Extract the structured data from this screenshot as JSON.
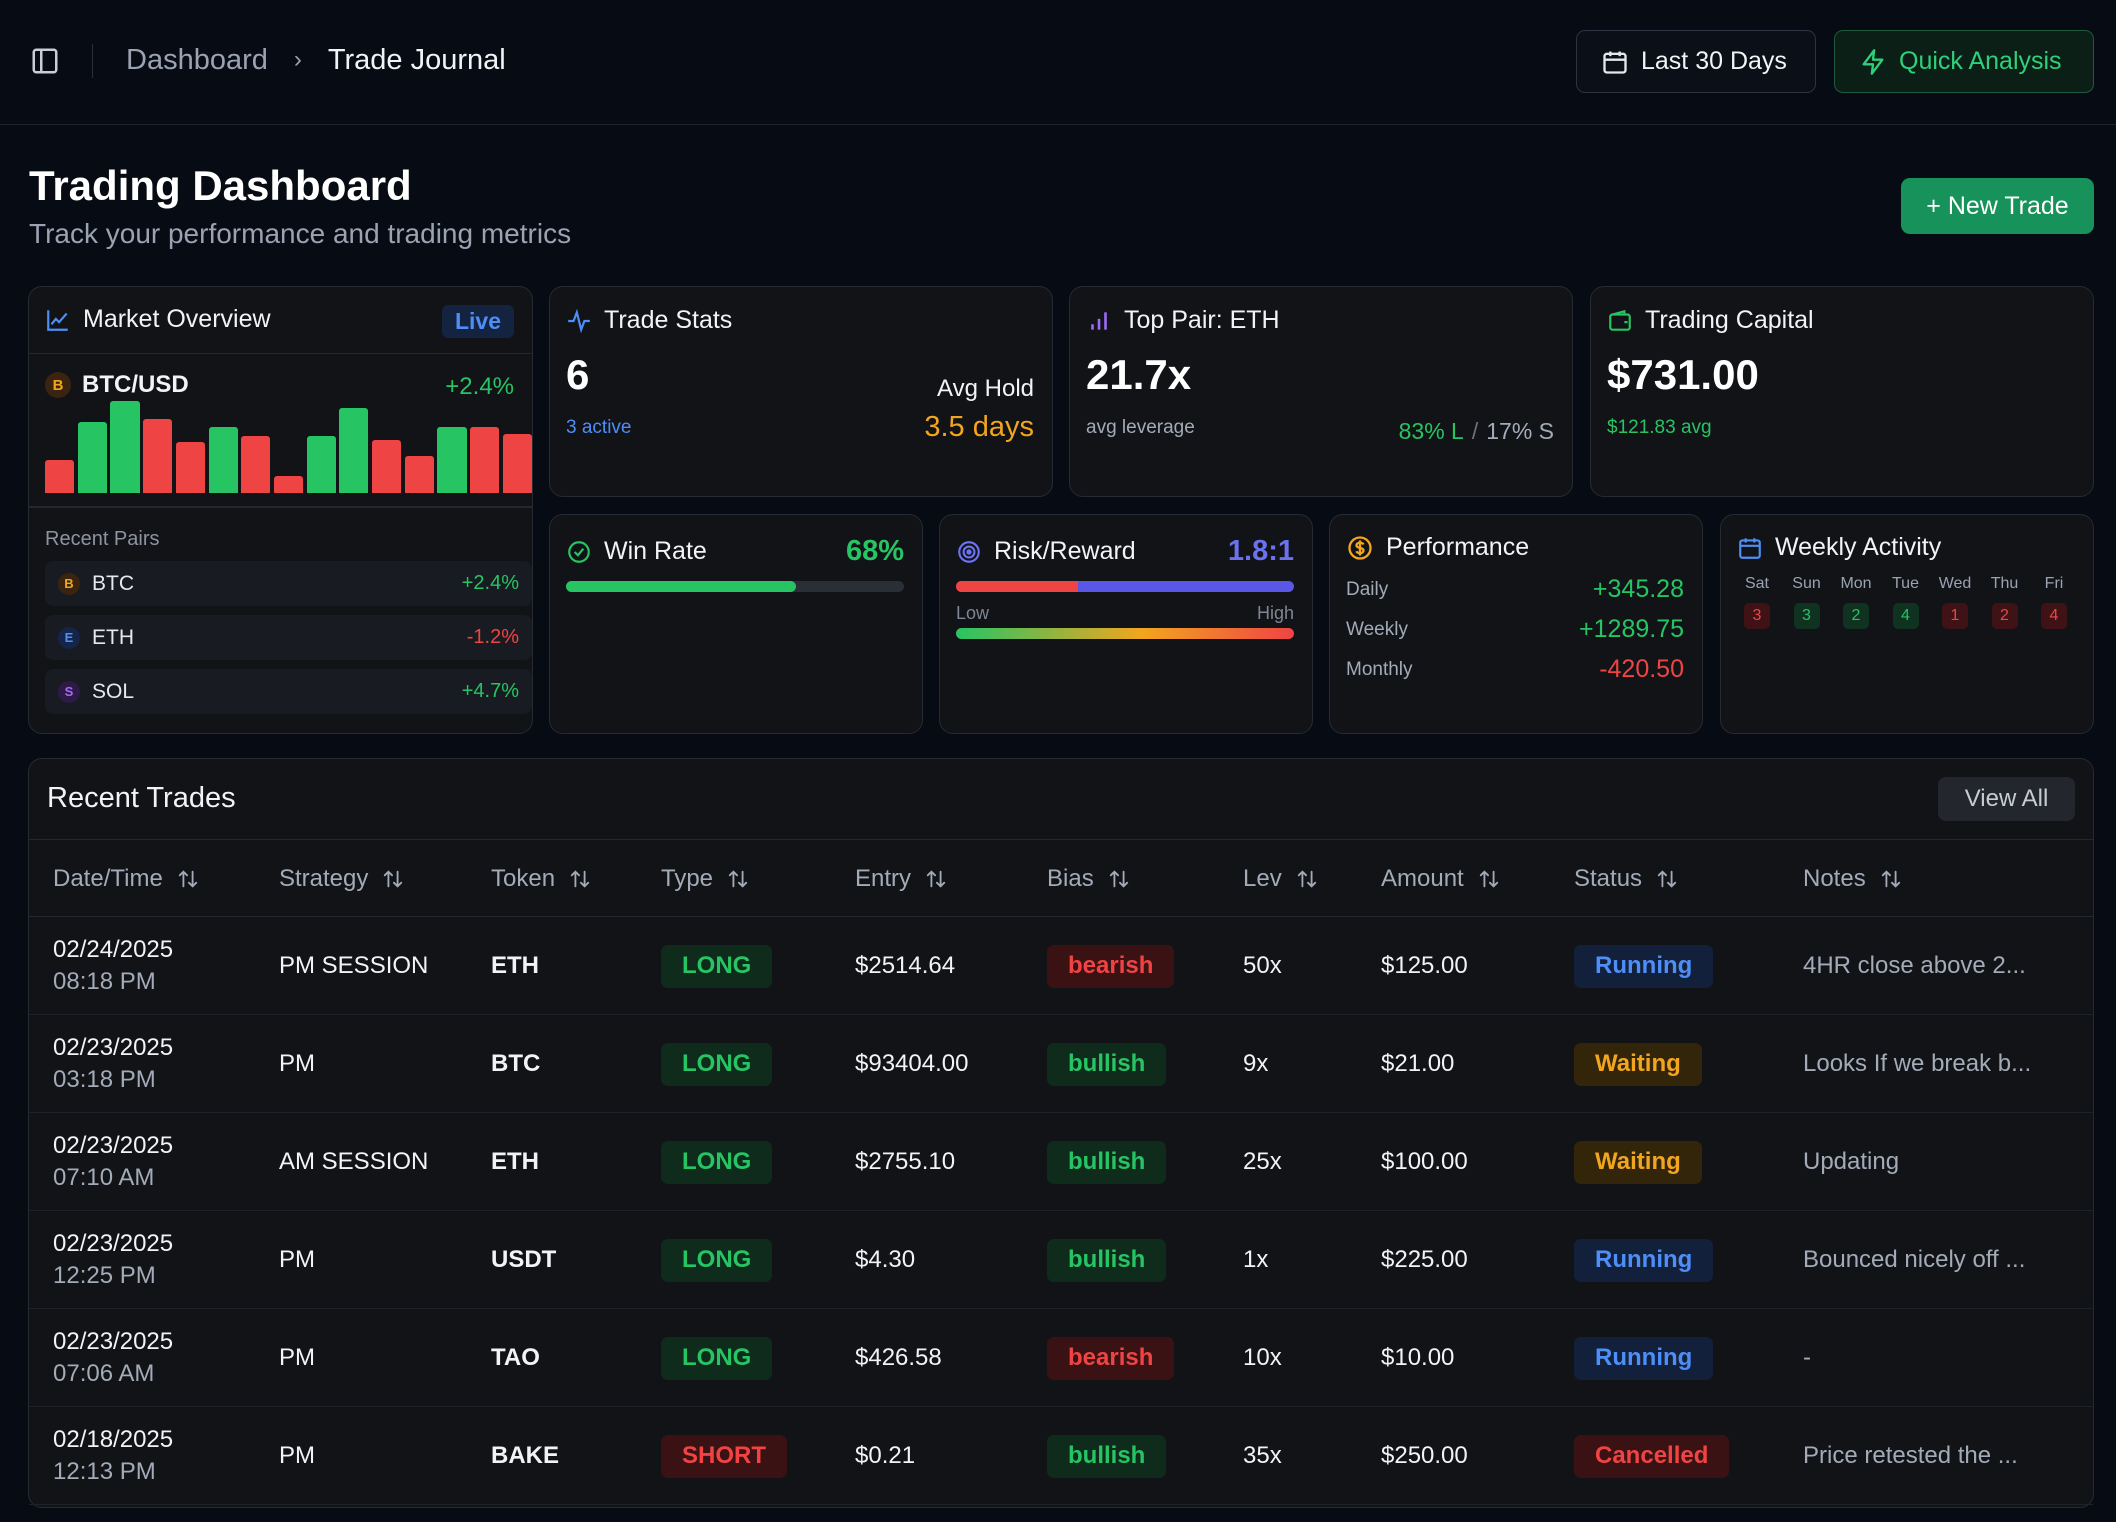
{
  "breadcrumb": {
    "parent": "Dashboard",
    "separator": "›",
    "current": "Trade Journal"
  },
  "header_actions": {
    "range_label": "Last 30 Days",
    "quick_label": "Quick Analysis"
  },
  "page": {
    "title": "Trading Dashboard",
    "subtitle": "Track your performance and trading metrics",
    "new_trade_label": "+ New Trade"
  },
  "market_overview": {
    "title": "Market Overview",
    "badge": "Live",
    "pair": {
      "symbol_letter": "B",
      "name": "BTC/USD",
      "change": "+2.4%"
    },
    "bars": [
      {
        "level": 0.36,
        "dir": "down"
      },
      {
        "level": 0.77,
        "dir": "up"
      },
      {
        "level": 1.0,
        "dir": "up"
      },
      {
        "level": 0.8,
        "dir": "down"
      },
      {
        "level": 0.55,
        "dir": "down"
      },
      {
        "level": 0.72,
        "dir": "up"
      },
      {
        "level": 0.62,
        "dir": "down"
      },
      {
        "level": 0.18,
        "dir": "down"
      },
      {
        "level": 0.62,
        "dir": "up"
      },
      {
        "level": 0.92,
        "dir": "up"
      },
      {
        "level": 0.58,
        "dir": "down"
      },
      {
        "level": 0.4,
        "dir": "down"
      },
      {
        "level": 0.72,
        "dir": "up"
      },
      {
        "level": 0.72,
        "dir": "down"
      },
      {
        "level": 0.64,
        "dir": "down"
      }
    ],
    "recent_label": "Recent Pairs",
    "recent_pairs": [
      {
        "letter": "B",
        "name": "BTC",
        "change": "+2.4%",
        "tone": "up"
      },
      {
        "letter": "E",
        "name": "ETH",
        "change": "-1.2%",
        "tone": "down"
      },
      {
        "letter": "S",
        "name": "SOL",
        "change": "+4.7%",
        "tone": "up"
      }
    ]
  },
  "trade_stats": {
    "title": "Trade Stats",
    "count": "6",
    "active": "3 active",
    "avg_hold_label": "Avg Hold",
    "avg_hold": "3.5 days"
  },
  "top_pair": {
    "title": "Top Pair: ETH",
    "value": "21.7x",
    "caption": "avg leverage",
    "long": "83% L",
    "sep": "/",
    "short": "17% S"
  },
  "trading_capital": {
    "title": "Trading Capital",
    "value": "$731.00",
    "avg": "$121.83 avg"
  },
  "win_rate": {
    "title": "Win Rate",
    "value": "68%",
    "progress": 0.68
  },
  "risk_reward": {
    "title": "Risk/Reward",
    "value": "1.8:1",
    "risk_share": 0.36,
    "low": "Low",
    "high": "High"
  },
  "performance": {
    "title": "Performance",
    "rows": [
      {
        "label": "Daily",
        "value": "+345.28",
        "tone": "up"
      },
      {
        "label": "Weekly",
        "value": "+1289.75",
        "tone": "up"
      },
      {
        "label": "Monthly",
        "value": "-420.50",
        "tone": "down"
      }
    ]
  },
  "weekly_activity": {
    "title": "Weekly Activity",
    "days": [
      {
        "day": "Sat",
        "count": "3",
        "tone": "down"
      },
      {
        "day": "Sun",
        "count": "3",
        "tone": "up"
      },
      {
        "day": "Mon",
        "count": "2",
        "tone": "up"
      },
      {
        "day": "Tue",
        "count": "4",
        "tone": "up"
      },
      {
        "day": "Wed",
        "count": "1",
        "tone": "down"
      },
      {
        "day": "Thu",
        "count": "2",
        "tone": "down"
      },
      {
        "day": "Fri",
        "count": "4",
        "tone": "down"
      }
    ]
  },
  "recent_trades": {
    "title": "Recent Trades",
    "view_all": "View All",
    "columns": [
      "Date/Time",
      "Strategy",
      "Token",
      "Type",
      "Entry",
      "Bias",
      "Lev",
      "Amount",
      "Status",
      "Notes"
    ],
    "rows": [
      {
        "date": "02/24/2025",
        "time": "08:18 PM",
        "strategy": "PM SESSION",
        "token": "ETH",
        "type": "LONG",
        "entry": "$2514.64",
        "bias": "bearish",
        "lev": "50x",
        "amount": "$125.00",
        "status": "Running",
        "notes": "4HR close above 2..."
      },
      {
        "date": "02/23/2025",
        "time": "03:18 PM",
        "strategy": "PM",
        "token": "BTC",
        "type": "LONG",
        "entry": "$93404.00",
        "bias": "bullish",
        "lev": "9x",
        "amount": "$21.00",
        "status": "Waiting",
        "notes": "Looks If we break b..."
      },
      {
        "date": "02/23/2025",
        "time": "07:10 AM",
        "strategy": "AM SESSION",
        "token": "ETH",
        "type": "LONG",
        "entry": "$2755.10",
        "bias": "bullish",
        "lev": "25x",
        "amount": "$100.00",
        "status": "Waiting",
        "notes": "Updating"
      },
      {
        "date": "02/23/2025",
        "time": "12:25 PM",
        "strategy": "PM",
        "token": "USDT",
        "type": "LONG",
        "entry": "$4.30",
        "bias": "bullish",
        "lev": "1x",
        "amount": "$225.00",
        "status": "Running",
        "notes": "Bounced nicely off ..."
      },
      {
        "date": "02/23/2025",
        "time": "07:06 AM",
        "strategy": "PM",
        "token": "TAO",
        "type": "LONG",
        "entry": "$426.58",
        "bias": "bearish",
        "lev": "10x",
        "amount": "$10.00",
        "status": "Running",
        "notes": "-"
      },
      {
        "date": "02/18/2025",
        "time": "12:13 PM",
        "strategy": "PM",
        "token": "BAKE",
        "type": "SHORT",
        "entry": "$0.21",
        "bias": "bullish",
        "lev": "35x",
        "amount": "$250.00",
        "status": "Cancelled",
        "notes": "Price retested the ..."
      }
    ]
  },
  "colors": {
    "up": "#27c464",
    "down": "#ef4444",
    "accent_blue": "#4e8ef7",
    "accent_orange": "#f2a51f",
    "brand_green": "#17925a"
  }
}
